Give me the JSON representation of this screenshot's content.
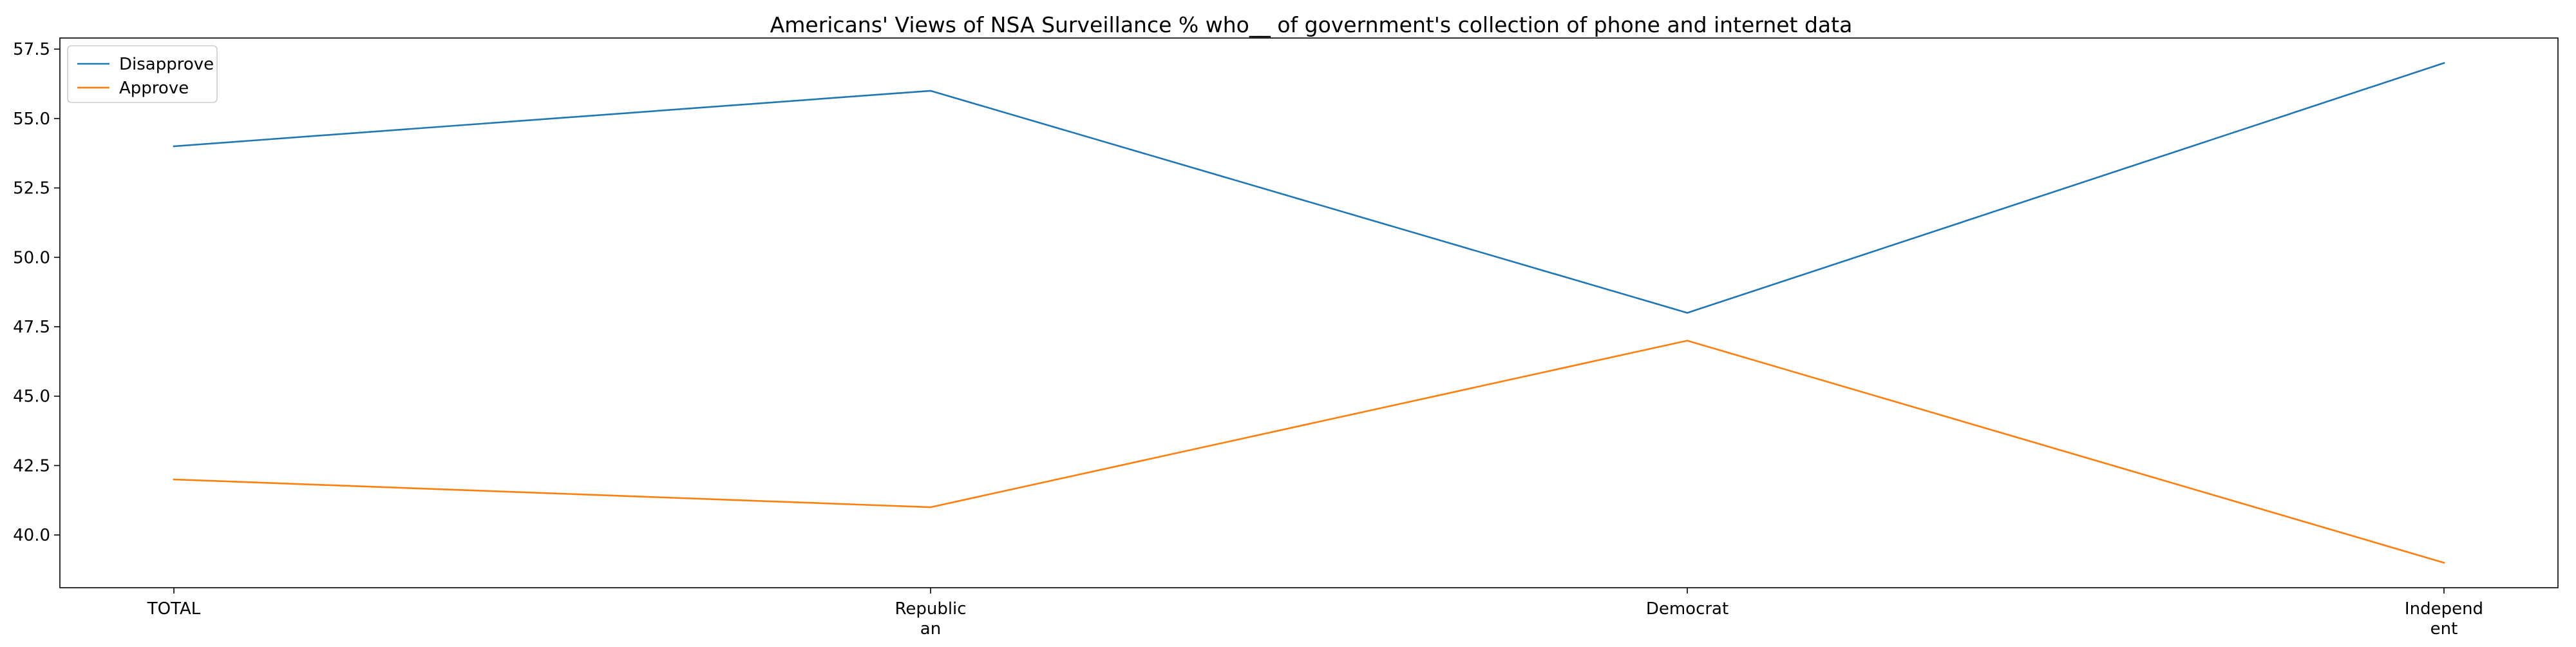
{
  "chart_data": {
    "type": "line",
    "title": "Americans' Views of NSA Surveillance % who__ of government's collection of phone and internet data",
    "xlabel": "",
    "ylabel": "",
    "categories": [
      [
        "TOTAL"
      ],
      [
        "Republic",
        "an"
      ],
      [
        "Democrat"
      ],
      [
        "Independ",
        "ent"
      ]
    ],
    "series": [
      {
        "name": "Disapprove",
        "color": "#1f77b4",
        "values": [
          54,
          56,
          48,
          57
        ]
      },
      {
        "name": "Approve",
        "color": "#ff7f0e",
        "values": [
          42,
          41,
          47,
          39
        ]
      }
    ],
    "ylim": [
      38.1,
      57.9
    ],
    "yticks": [
      40.0,
      42.5,
      45.0,
      47.5,
      50.0,
      52.5,
      55.0,
      57.5
    ],
    "ytick_labels": [
      "40.0",
      "42.5",
      "45.0",
      "47.5",
      "50.0",
      "52.5",
      "55.0",
      "57.5"
    ],
    "grid": false,
    "legend_position": "top-left"
  }
}
